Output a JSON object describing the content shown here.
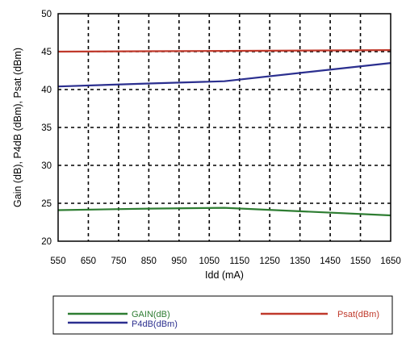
{
  "chart_data": {
    "type": "line",
    "xlabel": "Idd (mA)",
    "ylabel": "Gain (dB), P4dB (dBm), Psat (dBm)",
    "xlim": [
      550,
      1650
    ],
    "ylim": [
      20,
      50
    ],
    "x_ticks": [
      "550",
      "650",
      "750",
      "850",
      "950",
      "1050",
      "1150",
      "1250",
      "1350",
      "1450",
      "1550",
      "1650"
    ],
    "y_ticks": [
      "20",
      "25",
      "30",
      "35",
      "40",
      "45",
      "50"
    ],
    "grid": "dashed",
    "legend_placement": "bottom",
    "x": [
      550,
      850,
      1100,
      1650
    ],
    "series": [
      {
        "name": "GAIN(dB)",
        "color": "#2e7d32",
        "x": [
          550,
          850,
          1100,
          1650
        ],
        "values": [
          24.1,
          24.3,
          24.4,
          23.4
        ]
      },
      {
        "name": "P4dB(dBm)",
        "color": "#2b2f8f",
        "x": [
          550,
          850,
          1100,
          1650
        ],
        "values": [
          40.4,
          40.8,
          41.1,
          43.5
        ]
      },
      {
        "name": "Psat(dBm)",
        "color": "#c0392b",
        "x": [
          550,
          850,
          1100,
          1650
        ],
        "values": [
          45.0,
          45.05,
          45.1,
          45.2
        ]
      }
    ]
  }
}
